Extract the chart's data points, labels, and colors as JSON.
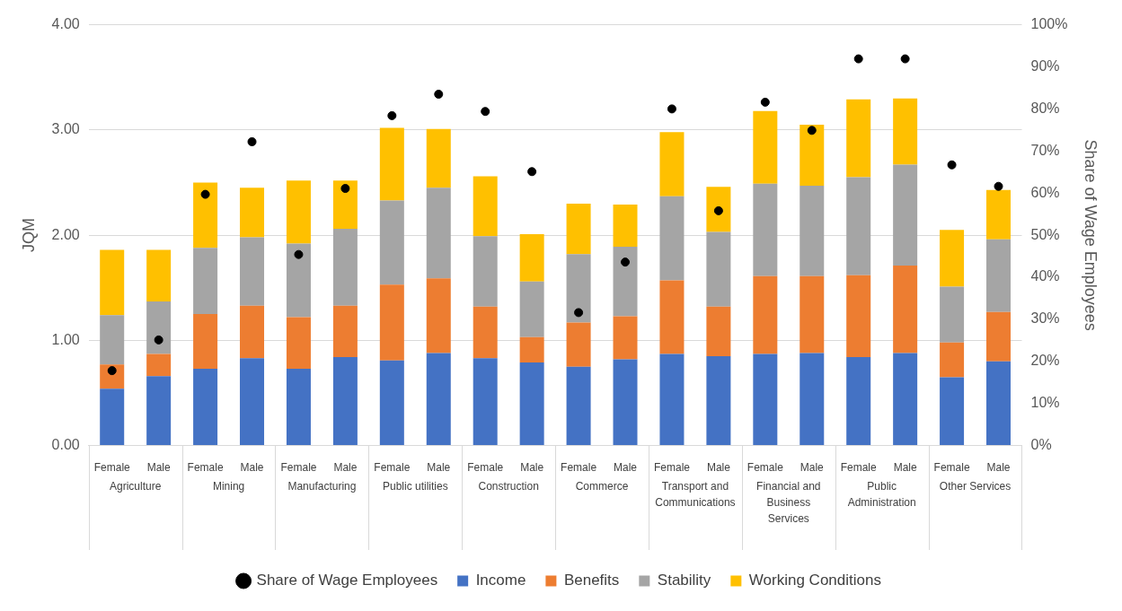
{
  "chart_data": {
    "type": "bar",
    "stacked": true,
    "ylabel": "JQM",
    "y2label": "Share of Wage Employees",
    "categories": [
      "Female",
      "Male",
      "Female",
      "Male",
      "Female",
      "Male",
      "Female",
      "Male",
      "Female",
      "Male",
      "Female",
      "Male",
      "Female",
      "Male",
      "Female",
      "Male",
      "Female",
      "Male",
      "Female",
      "Male"
    ],
    "annotations": [
      "Agriculture",
      "Mining",
      "Manufacturing",
      "Public utilities",
      "Construction",
      "Commerce",
      "Transport and Communications",
      "Financial and Business Services",
      "Public Administration",
      "Other Services"
    ],
    "series": [
      {
        "name": "Income",
        "color": "#4472c4",
        "values": [
          0.54,
          0.66,
          0.73,
          0.83,
          0.73,
          0.84,
          0.81,
          0.88,
          0.83,
          0.79,
          0.75,
          0.82,
          0.87,
          0.85,
          0.87,
          0.88,
          0.84,
          0.88,
          0.65,
          0.8
        ]
      },
      {
        "name": "Benefits",
        "color": "#ed7d31",
        "values": [
          0.23,
          0.21,
          0.52,
          0.5,
          0.49,
          0.49,
          0.72,
          0.71,
          0.49,
          0.24,
          0.42,
          0.41,
          0.7,
          0.47,
          0.74,
          0.73,
          0.78,
          0.83,
          0.33,
          0.47
        ]
      },
      {
        "name": "Stability",
        "color": "#a5a5a5",
        "values": [
          0.47,
          0.5,
          0.63,
          0.65,
          0.7,
          0.73,
          0.8,
          0.86,
          0.67,
          0.53,
          0.65,
          0.66,
          0.8,
          0.71,
          0.88,
          0.86,
          0.93,
          0.96,
          0.53,
          0.69
        ]
      },
      {
        "name": "Working Conditions",
        "color": "#ffc000",
        "values": [
          0.62,
          0.49,
          0.62,
          0.47,
          0.6,
          0.46,
          0.69,
          0.56,
          0.57,
          0.45,
          0.48,
          0.4,
          0.61,
          0.43,
          0.69,
          0.58,
          0.74,
          0.63,
          0.54,
          0.47
        ]
      },
      {
        "name": "Share of Wage Employees",
        "type": "scatter",
        "axis": "y2",
        "color": "#000000",
        "values": [
          17.8,
          25.1,
          59.7,
          72.2,
          45.4,
          61.1,
          78.4,
          83.5,
          79.4,
          65.1,
          31.6,
          43.6,
          80.0,
          55.8,
          81.6,
          74.9,
          91.9,
          91.9,
          66.7,
          61.6
        ]
      }
    ],
    "ylim": [
      0,
      4
    ],
    "yticks": [
      {
        "value": 0,
        "label": "0.00"
      },
      {
        "value": 1,
        "label": "1.00"
      },
      {
        "value": 2,
        "label": "2.00"
      },
      {
        "value": 3,
        "label": "3.00"
      },
      {
        "value": 4,
        "label": "4.00"
      }
    ],
    "y2lim": [
      0,
      100
    ],
    "y2ticks": [
      {
        "value": 0,
        "label": "0%"
      },
      {
        "value": 10,
        "label": "10%"
      },
      {
        "value": 20,
        "label": "20%"
      },
      {
        "value": 30,
        "label": "30%"
      },
      {
        "value": 40,
        "label": "40%"
      },
      {
        "value": 50,
        "label": "50%"
      },
      {
        "value": 60,
        "label": "60%"
      },
      {
        "value": 70,
        "label": "70%"
      },
      {
        "value": 80,
        "label": "80%"
      },
      {
        "value": 90,
        "label": "90%"
      },
      {
        "value": 100,
        "label": "100%"
      }
    ],
    "grid": "y",
    "legend": "bottom",
    "marker": "circle"
  }
}
